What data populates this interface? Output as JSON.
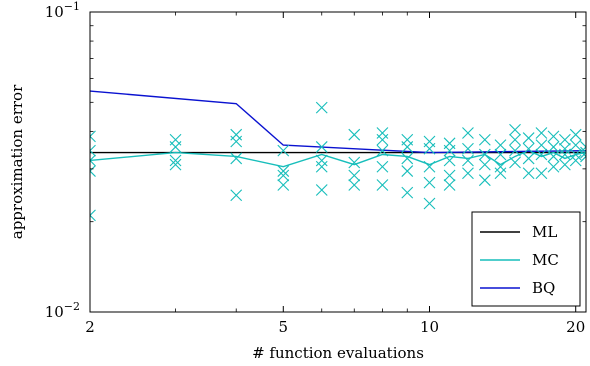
{
  "chart_data": {
    "type": "line",
    "title": "",
    "xlabel": "# function evaluations",
    "ylabel": "approximation error",
    "x_scale": "log",
    "y_scale": "log",
    "xlim": [
      2,
      21
    ],
    "ylim": [
      0.01,
      0.1
    ],
    "x_ticks": [
      {
        "value": 2,
        "label": "2"
      },
      {
        "value": 5,
        "label": "5"
      },
      {
        "value": 10,
        "label": "10"
      },
      {
        "value": 20,
        "label": "20"
      }
    ],
    "y_ticks": [
      {
        "value": 0.01,
        "base": "10",
        "exp": "−2"
      },
      {
        "value": 0.1,
        "base": "10",
        "exp": "−1"
      }
    ],
    "grid": false,
    "legend_position": "bottom-right",
    "series": [
      {
        "name": "ML",
        "color": "#000000",
        "style": "line",
        "x": [
          2,
          21
        ],
        "y": [
          0.034,
          0.034
        ]
      },
      {
        "name": "MC",
        "color": "#17BEBB",
        "style": "line",
        "x": [
          2,
          3,
          4,
          5,
          6,
          7,
          8,
          9,
          10,
          11,
          12,
          13,
          14,
          15,
          16,
          17,
          18,
          19,
          20,
          21
        ],
        "y": [
          0.032,
          0.034,
          0.033,
          0.0305,
          0.0335,
          0.031,
          0.0335,
          0.033,
          0.031,
          0.033,
          0.0325,
          0.0335,
          0.031,
          0.033,
          0.0345,
          0.033,
          0.034,
          0.0325,
          0.0335,
          0.034
        ]
      },
      {
        "name": "BQ",
        "color": "#0A12D0",
        "style": "line",
        "x": [
          2,
          4,
          5,
          10,
          21
        ],
        "y": [
          0.0545,
          0.0495,
          0.036,
          0.034,
          0.0345
        ]
      },
      {
        "name": "MC samples",
        "color": "#17BEBB",
        "style": "marker-x",
        "x": [
          2,
          2,
          2,
          2,
          2,
          3,
          3,
          3,
          3,
          4,
          4,
          4,
          4,
          5,
          5,
          5,
          5,
          6,
          6,
          6,
          6,
          6,
          7,
          7,
          7,
          7,
          8,
          8,
          8,
          8,
          8,
          9,
          9,
          9,
          9,
          9,
          10,
          10,
          10,
          10,
          10,
          11,
          11,
          11,
          11,
          11,
          12,
          12,
          12,
          12,
          13,
          13,
          13,
          13,
          14,
          14,
          14,
          14,
          15,
          15,
          15,
          15,
          16,
          16,
          16,
          16,
          17,
          17,
          17,
          17,
          18,
          18,
          18,
          18,
          19,
          19,
          19,
          19,
          20,
          20,
          20,
          20,
          21,
          21,
          21
        ],
        "y": [
          0.0385,
          0.0345,
          0.032,
          0.0295,
          0.021,
          0.0375,
          0.0355,
          0.032,
          0.031,
          0.039,
          0.037,
          0.0325,
          0.0245,
          0.0345,
          0.0295,
          0.0285,
          0.0265,
          0.048,
          0.0355,
          0.032,
          0.0305,
          0.0255,
          0.039,
          0.0315,
          0.0285,
          0.0265,
          0.0395,
          0.0375,
          0.0345,
          0.0305,
          0.0265,
          0.0375,
          0.0355,
          0.0325,
          0.0295,
          0.025,
          0.037,
          0.035,
          0.0305,
          0.027,
          0.023,
          0.0365,
          0.0345,
          0.032,
          0.0285,
          0.0265,
          0.0395,
          0.035,
          0.032,
          0.029,
          0.0375,
          0.0335,
          0.031,
          0.0275,
          0.036,
          0.0335,
          0.0305,
          0.029,
          0.0405,
          0.0375,
          0.0345,
          0.0315,
          0.038,
          0.035,
          0.0325,
          0.029,
          0.0395,
          0.036,
          0.0335,
          0.029,
          0.0385,
          0.0355,
          0.033,
          0.0305,
          0.0375,
          0.035,
          0.0335,
          0.031,
          0.039,
          0.036,
          0.0335,
          0.032,
          0.0355,
          0.034,
          0.033
        ]
      }
    ]
  }
}
